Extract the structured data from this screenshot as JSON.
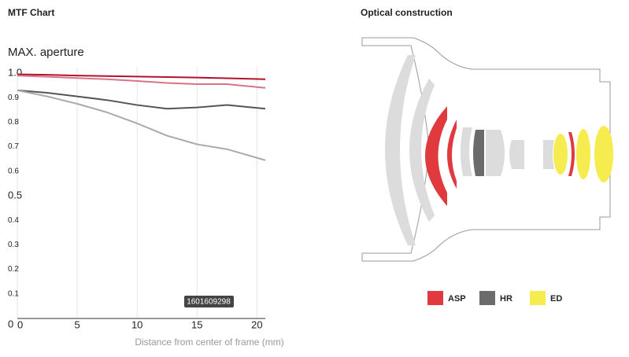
{
  "header": {
    "mtf_heading": "MTF Chart",
    "optical_heading": "Optical construction"
  },
  "chart_data": {
    "type": "line",
    "title": "MAX. aperture",
    "x_label": "Distance from center of frame (mm)",
    "annotation": "1601609298",
    "x": [
      0,
      2.5,
      5,
      7.5,
      10,
      12.5,
      15,
      17.5,
      20.7
    ],
    "series": [
      {
        "color": "#b3122e",
        "values": [
          0.995,
          0.993,
          0.99,
          0.988,
          0.986,
          0.984,
          0.982,
          0.979,
          0.975
        ]
      },
      {
        "color": "#d97389",
        "values": [
          0.99,
          0.985,
          0.98,
          0.975,
          0.968,
          0.96,
          0.955,
          0.955,
          0.94
        ]
      },
      {
        "color": "#555555",
        "values": [
          0.93,
          0.92,
          0.905,
          0.89,
          0.87,
          0.855,
          0.86,
          0.87,
          0.855
        ]
      },
      {
        "color": "#aaaaaa",
        "values": [
          0.93,
          0.905,
          0.875,
          0.84,
          0.795,
          0.745,
          0.71,
          0.69,
          0.645
        ]
      }
    ],
    "xlim": [
      0,
      20.7
    ],
    "xticks": [
      0,
      5,
      10,
      15,
      20
    ],
    "ylim": [
      0,
      1
    ],
    "yticks": [
      0,
      0.1,
      0.2,
      0.3,
      0.4,
      0.5,
      0.6,
      0.7,
      0.8,
      0.9,
      {
        "value": 1,
        "label": "1.0"
      }
    ],
    "grid": true
  },
  "optical": {
    "legend": [
      {
        "label": "ASP",
        "color": "#e0393e"
      },
      {
        "label": "HR",
        "color": "#6b6b6b"
      },
      {
        "label": "ED",
        "color": "#f7ec4f"
      }
    ]
  }
}
